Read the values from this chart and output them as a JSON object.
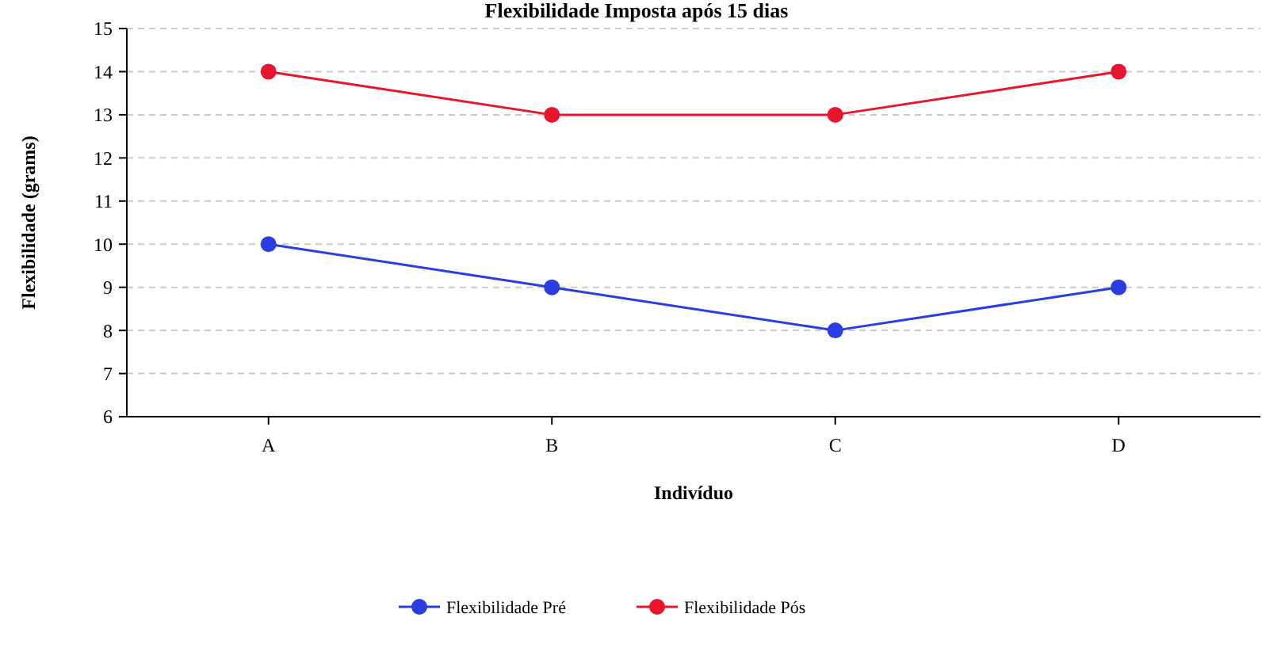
{
  "chart_data": {
    "type": "line",
    "title": "Flexibilidade Imposta após 15 dias",
    "xlabel": "Indivíduo",
    "ylabel": "Flexibilidade (grams)",
    "categories": [
      "A",
      "B",
      "C",
      "D"
    ],
    "series": [
      {
        "name": "Flexibilidade Pré",
        "color": "#2a3de0",
        "values": [
          10,
          9,
          8,
          9
        ]
      },
      {
        "name": "Flexibilidade Pós",
        "color": "#e8162c",
        "values": [
          14,
          13,
          13,
          14
        ]
      }
    ],
    "ylim": [
      6,
      15
    ],
    "yticks": [
      6,
      7,
      8,
      9,
      10,
      11,
      12,
      13,
      14,
      15
    ],
    "grid": "y",
    "legend": "bottom",
    "marker": "circle",
    "line_style": "solid"
  }
}
